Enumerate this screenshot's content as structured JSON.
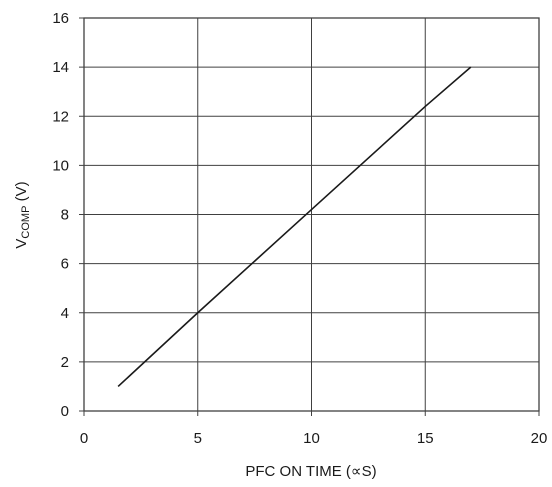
{
  "chart_data": {
    "type": "line",
    "title": "",
    "xlabel": "PFC ON TIME (∝S)",
    "ylabel": {
      "main": "V",
      "subscript": "COMP",
      "suffix": " (V)"
    },
    "xlim": [
      0,
      20
    ],
    "ylim": [
      0,
      16
    ],
    "xticks": [
      0,
      5,
      10,
      15,
      20
    ],
    "yticks": [
      0,
      2,
      4,
      6,
      8,
      10,
      12,
      14,
      16
    ],
    "grid": true,
    "legend": "none",
    "series": [
      {
        "x": [
          1.5,
          5,
          10,
          15,
          17
        ],
        "y": [
          1,
          4,
          8.2,
          12.4,
          14
        ],
        "color": "#1a1a1a"
      }
    ],
    "colors": {
      "grid": "#404040",
      "frame": "#404040",
      "line": "#1a1a1a"
    }
  }
}
